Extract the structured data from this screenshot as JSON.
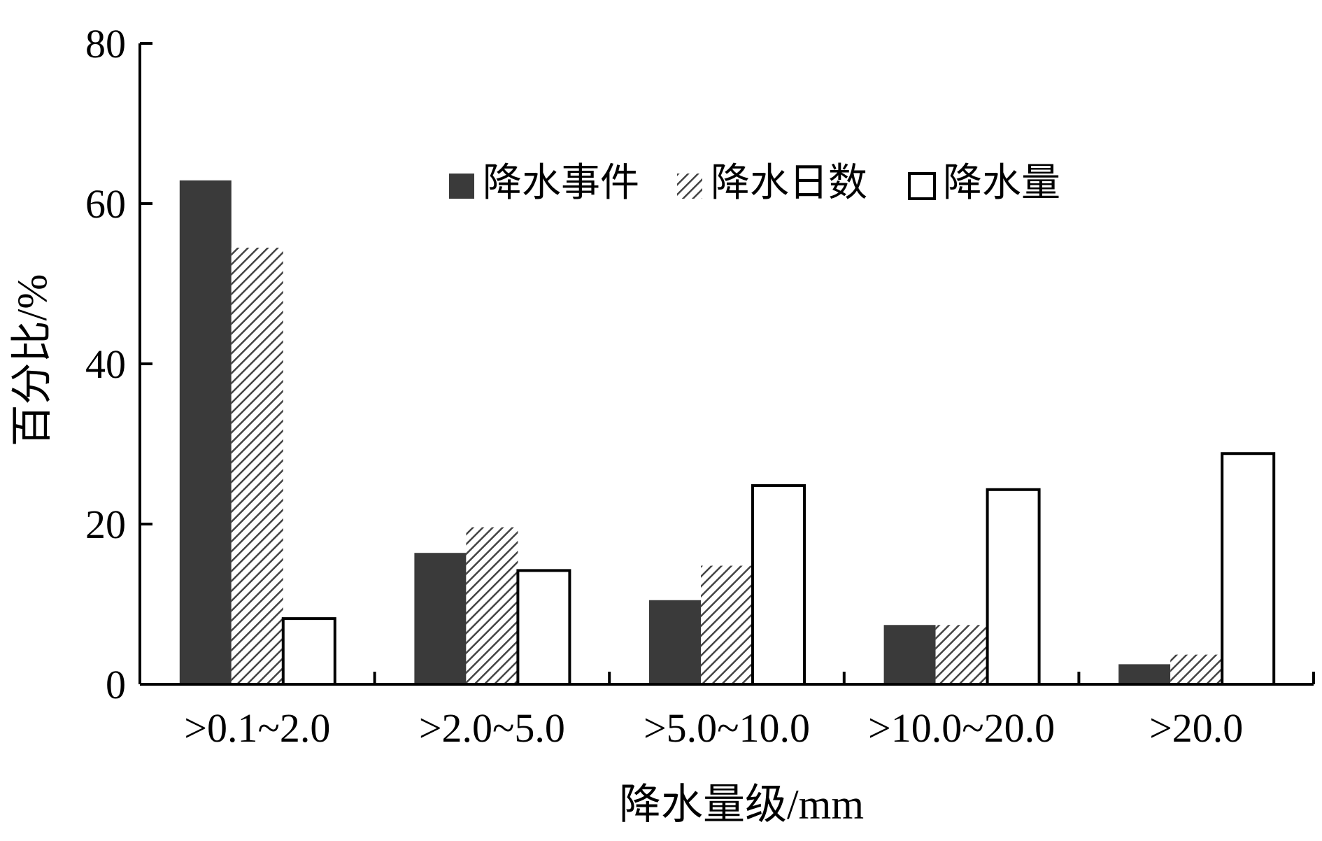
{
  "chart_data": {
    "type": "bar",
    "title": "",
    "xlabel": "降水量级/mm",
    "ylabel": "百分比/%",
    "ylim": [
      0,
      80
    ],
    "yticks": [
      0,
      20,
      40,
      60,
      80
    ],
    "categories": [
      ">0.1~2.0",
      ">2.0~5.0",
      ">5.0~10.0",
      ">10.0~20.0",
      ">20.0"
    ],
    "series": [
      {
        "name": "降水事件",
        "values": [
          62.9,
          16.4,
          10.5,
          7.4,
          2.5
        ],
        "fill": "solid",
        "color": "#3a3a3a"
      },
      {
        "name": "降水日数",
        "values": [
          54.5,
          19.6,
          14.8,
          7.4,
          3.7
        ],
        "fill": "hatch",
        "color": "#555555"
      },
      {
        "name": "降水量",
        "values": [
          8.2,
          14.2,
          24.8,
          24.3,
          28.8
        ],
        "fill": "hollow",
        "color": "#000000"
      }
    ],
    "grid": false,
    "legend_position": "top-center"
  }
}
